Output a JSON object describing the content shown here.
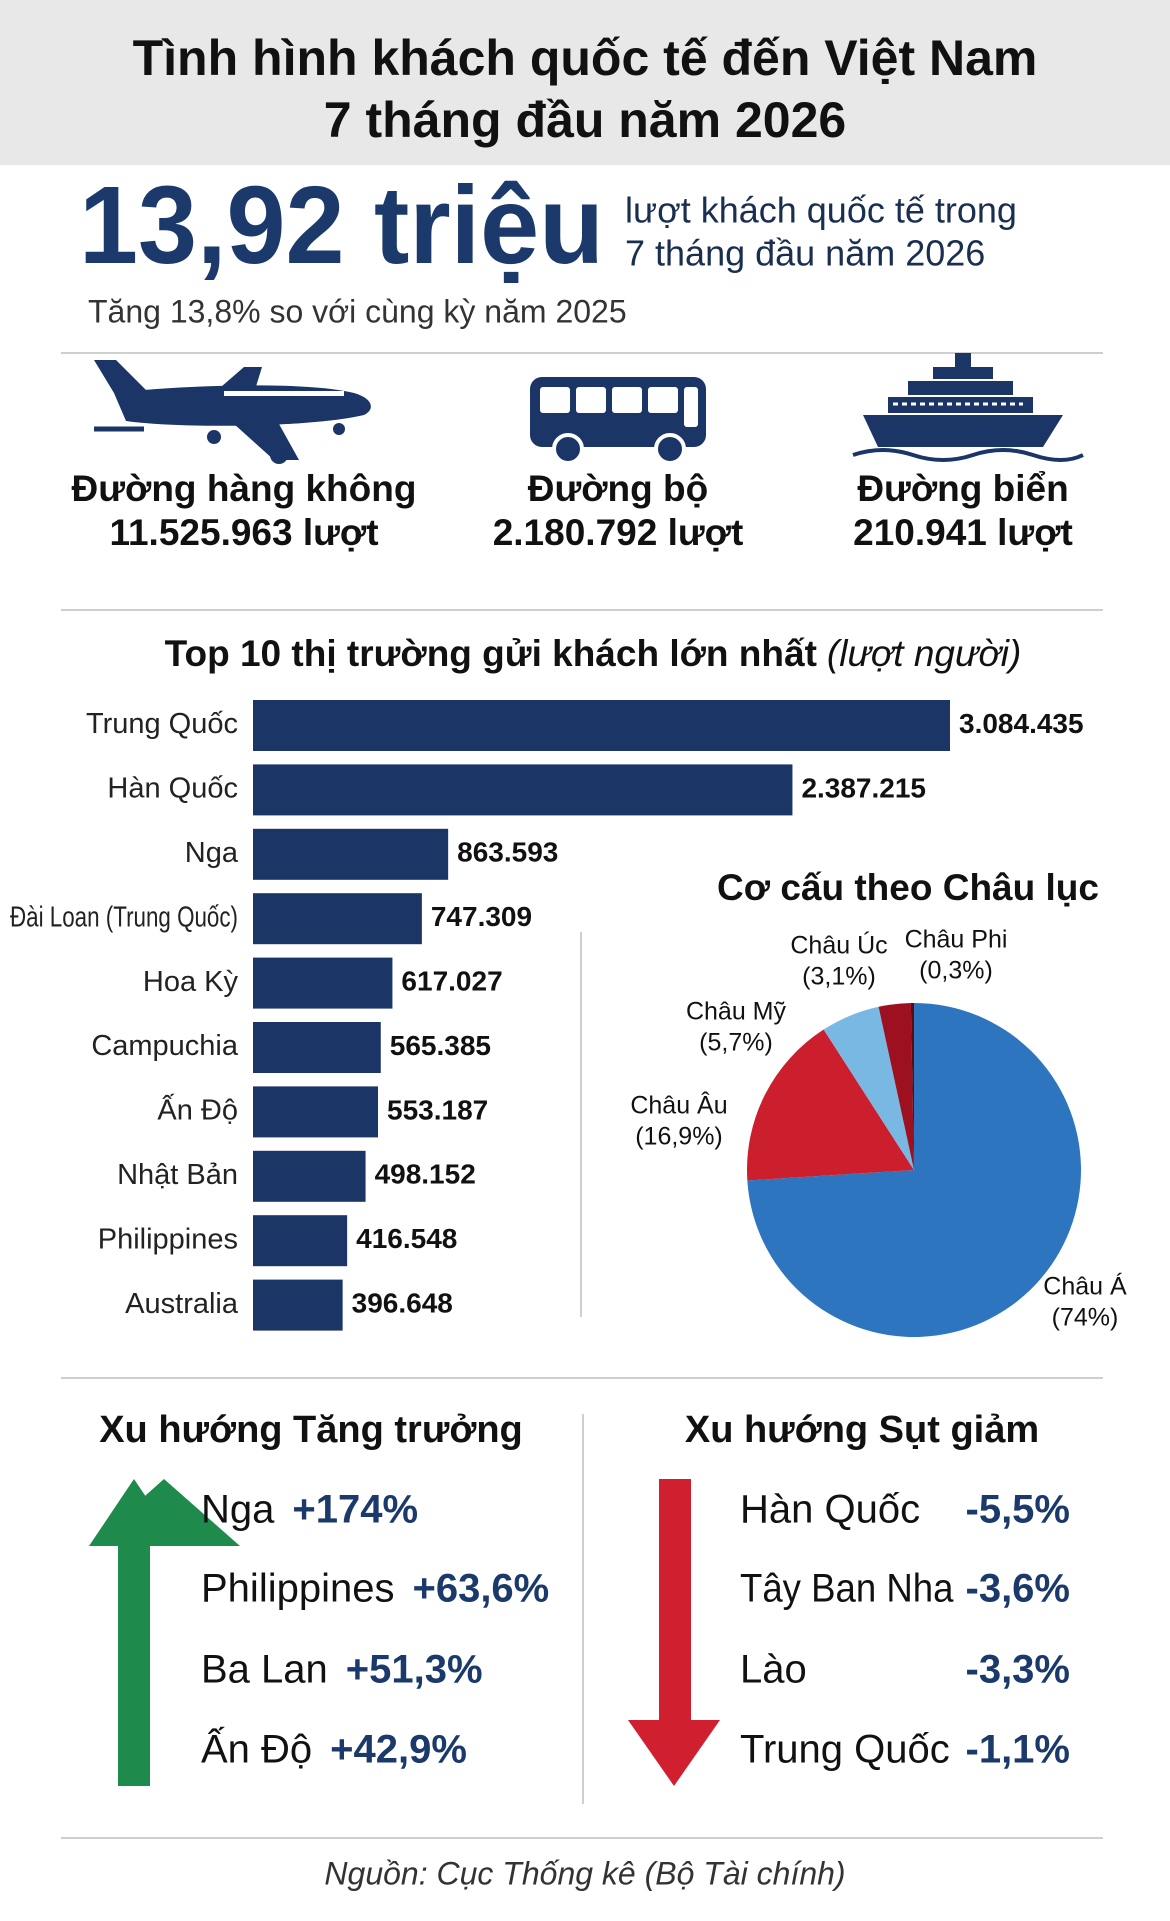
{
  "header": {
    "title_lines": [
      "Tình hình khách quốc tế đến Việt Nam",
      "7 tháng đầu năm 2026"
    ]
  },
  "headline": {
    "value": "13,92 triệu",
    "description_lines": [
      "lượt khách quốc tế trong",
      "7 tháng đầu năm 2026"
    ],
    "growth_note": "Tăng 13,8% so với cùng kỳ năm 2025"
  },
  "transport": [
    {
      "mode": "Đường hàng không",
      "count": "11.525.963 lượt"
    },
    {
      "mode": "Đường bộ",
      "count": "2.180.792 lượt"
    },
    {
      "mode": "Đường biển",
      "count": "210.941 lượt"
    }
  ],
  "chart_data": [
    {
      "type": "bar",
      "title": "Top 10 thị trường gửi khách lớn nhất",
      "subtitle": "(lượt người)",
      "categories": [
        "Trung Quốc",
        "Hàn Quốc",
        "Nga",
        "Đài Loan (Trung Quốc)",
        "Hoa Kỳ",
        "Campuchia",
        "Ấn Độ",
        "Nhật Bản",
        "Philippines",
        "Australia"
      ],
      "values": [
        3084435,
        2387215,
        863593,
        747309,
        617027,
        565385,
        553187,
        498152,
        416548,
        396648
      ],
      "value_labels": [
        "3.084.435",
        "2.387.215",
        "863.593",
        "747.309",
        "617.027",
        "565.385",
        "553.187",
        "498.152",
        "416.548",
        "396.648"
      ],
      "color": "#1b3566"
    },
    {
      "type": "pie",
      "title": "Cơ cấu theo Châu lục",
      "categories": [
        "Châu Á",
        "Châu Âu",
        "Châu Mỹ",
        "Châu Úc",
        "Châu Phi"
      ],
      "values": [
        74,
        16.9,
        5.7,
        3.1,
        0.3
      ],
      "value_labels": [
        "(74%)",
        "(16,9%)",
        "(5,7%)",
        "(3,1%)",
        "(0,3%)"
      ],
      "colors": [
        "#2e75c0",
        "#cc1f2e",
        "#7ab8e4",
        "#9c1020",
        "#5a0a12"
      ]
    }
  ],
  "trends": {
    "growth": {
      "title": "Xu hướng Tăng trưởng",
      "items": [
        {
          "name": "Nga",
          "change": "+174%"
        },
        {
          "name": "Philippines",
          "change": "+63,6%"
        },
        {
          "name": "Ba Lan",
          "change": "+51,3%"
        },
        {
          "name": "Ấn Độ",
          "change": "+42,9%"
        }
      ]
    },
    "decline": {
      "title": "Xu hướng Sụt giảm",
      "items": [
        {
          "name": "Hàn Quốc",
          "change": "-5,5%"
        },
        {
          "name": "Tây Ban Nha",
          "change": "-3,6%"
        },
        {
          "name": "Lào",
          "change": "-3,3%"
        },
        {
          "name": "Trung Quốc",
          "change": "-1,1%"
        }
      ]
    }
  },
  "source": "Nguồn: Cục Thống kê (Bộ Tài chính)"
}
